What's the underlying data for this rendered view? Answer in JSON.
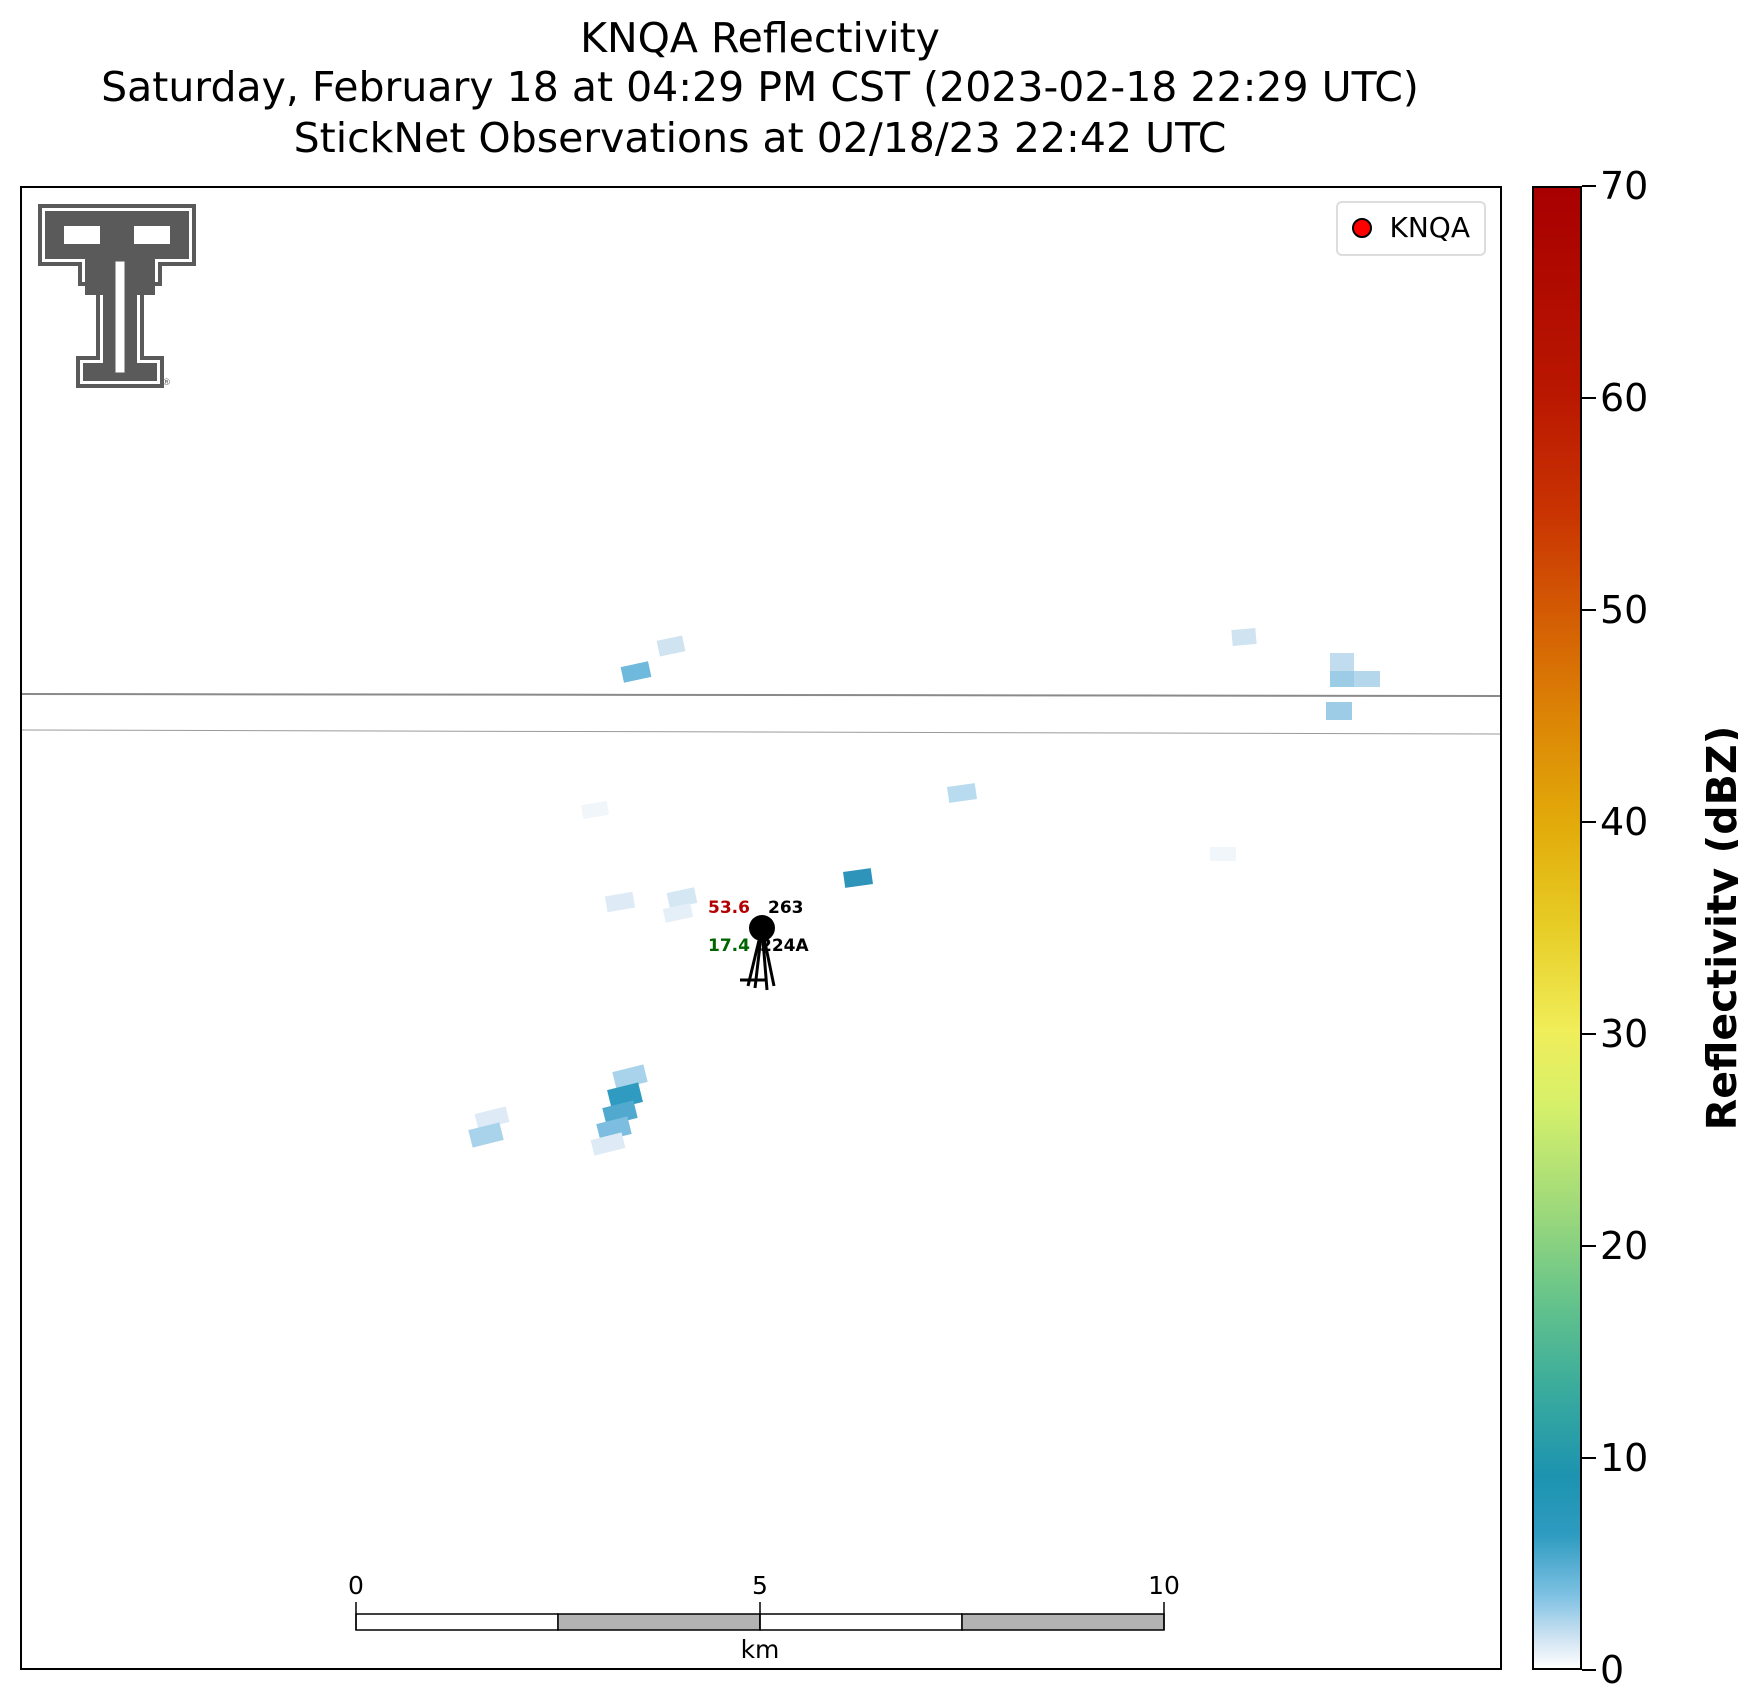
{
  "title": {
    "line1": "KNQA Reflectivity",
    "line2": "Saturday, February 18 at 04:29 PM CST (2023-02-18 22:29 UTC)",
    "line3": "StickNet Observations at 02/18/23 22:42 UTC"
  },
  "legend": {
    "label": "KNQA",
    "marker_color": "#ff0000"
  },
  "logo": {
    "name": "double-t-logo",
    "color": "#5a5a5a"
  },
  "station": {
    "temperature": "53.6",
    "temperature_color": "#b30000",
    "dewpoint": "17.4",
    "dewpoint_color": "#006400",
    "pressure": "263",
    "id": "224A"
  },
  "scale_bar": {
    "labels": [
      "0",
      "5",
      "10"
    ],
    "unit": "km",
    "fill_colors": [
      "#ffffff",
      "#b3b3b3",
      "#ffffff",
      "#b3b3b3"
    ]
  },
  "colorbar": {
    "label": "Reflectivity (dBZ)",
    "ticks": [
      "0",
      "10",
      "20",
      "30",
      "40",
      "50",
      "60",
      "70"
    ],
    "range": [
      0,
      70
    ]
  },
  "reflectivity_colors": {
    "light": "#deebf7",
    "pale": "#b9dbef",
    "mid": "#8ccbe5",
    "strong": "#4aa9d1",
    "deep": "#1f8fb0"
  }
}
